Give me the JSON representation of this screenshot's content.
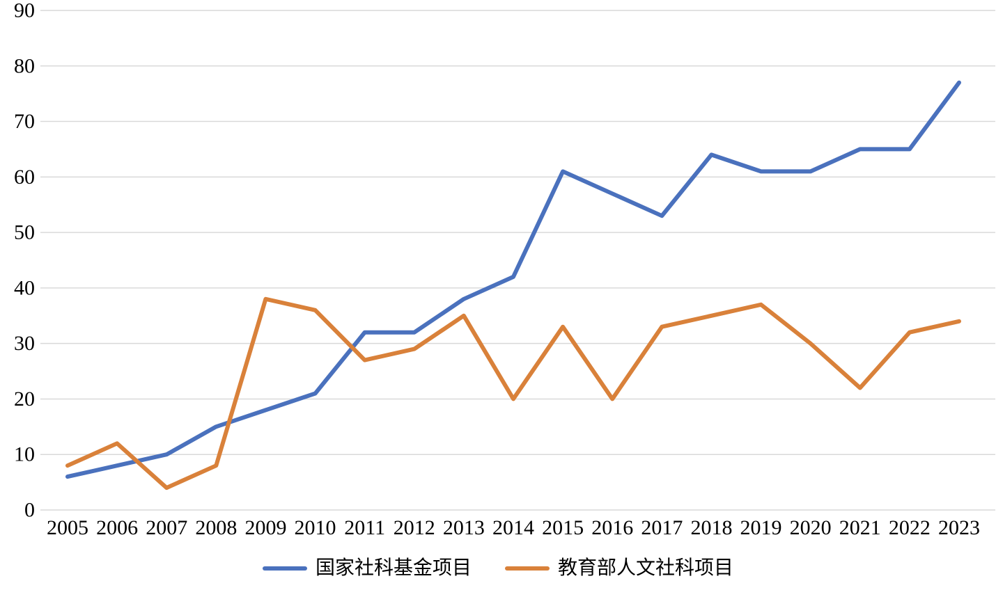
{
  "chart_data": {
    "type": "line",
    "title": "",
    "xlabel": "",
    "ylabel": "",
    "x": [
      "2005",
      "2006",
      "2007",
      "2008",
      "2009",
      "2010",
      "2011",
      "2012",
      "2013",
      "2014",
      "2015",
      "2016",
      "2017",
      "2018",
      "2019",
      "2020",
      "2021",
      "2022",
      "2023"
    ],
    "series": [
      {
        "name": "国家社科基金项目",
        "color": "#4a71bd",
        "values": [
          6,
          8,
          10,
          15,
          18,
          21,
          32,
          32,
          38,
          42,
          61,
          57,
          53,
          64,
          61,
          61,
          65,
          65,
          77
        ]
      },
      {
        "name": "教育部人文社科项目",
        "color": "#d9813a",
        "values": [
          8,
          12,
          4,
          8,
          38,
          36,
          27,
          29,
          35,
          20,
          33,
          20,
          33,
          35,
          37,
          30,
          22,
          32,
          34
        ]
      }
    ],
    "ylim": [
      0,
      90
    ],
    "ytick_step": 10,
    "yticks": [
      "0",
      "10",
      "20",
      "30",
      "40",
      "50",
      "60",
      "70",
      "80",
      "90"
    ],
    "grid": "horizontal",
    "gridline_color": "#d9d9d9",
    "background_color": "#ffffff",
    "legend_position": "bottom"
  }
}
